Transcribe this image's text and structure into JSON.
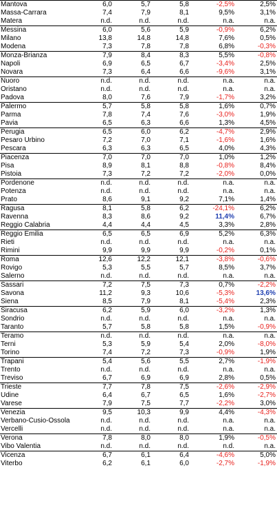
{
  "table": {
    "rows": [
      [
        "Mantova",
        "6,0",
        "5,7",
        "5,8",
        "-2,5%",
        "2,5%"
      ],
      [
        "Massa-Carrara",
        "7,4",
        "7,9",
        "8,1",
        "9,5%",
        "3,1%"
      ],
      [
        "Matera",
        "n.d.",
        "n.d.",
        "n.d.",
        "n.a.",
        "n.a."
      ],
      [
        "Messina",
        "6,0",
        "5,6",
        "5,9",
        "-0,9%",
        "6,2%"
      ],
      [
        "Milano",
        "13,8",
        "14,8",
        "14,8",
        "7,6%",
        "0,5%"
      ],
      [
        "Modena",
        "7,3",
        "7,8",
        "7,8",
        "6,8%",
        "-0,3%"
      ],
      [
        "Monza-Brianza",
        "7,9",
        "8,4",
        "8,3",
        "5,5%",
        "-0,8%"
      ],
      [
        "Napoli",
        "6,9",
        "6,5",
        "6,7",
        "-3,4%",
        "2,5%"
      ],
      [
        "Novara",
        "7,3",
        "6,4",
        "6,6",
        "-9,6%",
        "3,1%"
      ],
      [
        "Nuoro",
        "n.d.",
        "n.d.",
        "n.d.",
        "n.a.",
        "n.a."
      ],
      [
        "Oristano",
        "n.d.",
        "n.d.",
        "n.d.",
        "n.a.",
        "n.a."
      ],
      [
        "Padova",
        "8,0",
        "7,6",
        "7,9",
        "-1,7%",
        "3,2%"
      ],
      [
        "Palermo",
        "5,7",
        "5,8",
        "5,8",
        "1,6%",
        "0,7%"
      ],
      [
        "Parma",
        "7,8",
        "7,4",
        "7,6",
        "-3,0%",
        "1,9%"
      ],
      [
        "Pavia",
        "6,5",
        "6,3",
        "6,6",
        "1,3%",
        "4,5%"
      ],
      [
        "Perugia",
        "6,5",
        "6,0",
        "6,2",
        "-4,7%",
        "2,9%"
      ],
      [
        "Pesaro Urbino",
        "7,2",
        "7,0",
        "7,1",
        "-1,6%",
        "1,6%"
      ],
      [
        "Pescara",
        "6,3",
        "6,3",
        "6,5",
        "4,0%",
        "4,3%"
      ],
      [
        "Piacenza",
        "7,0",
        "7,0",
        "7,0",
        "1,0%",
        "1,2%"
      ],
      [
        "Pisa",
        "8,9",
        "8,1",
        "8,8",
        "-0,8%",
        "8,4%"
      ],
      [
        "Pistoia",
        "7,3",
        "7,2",
        "7,2",
        "-2,0%",
        "0,0%"
      ],
      [
        "Pordenone",
        "n.d.",
        "n.d.",
        "n.d.",
        "n.a.",
        "n.a."
      ],
      [
        "Potenza",
        "n.d.",
        "n.d.",
        "n.d.",
        "n.a.",
        "n.a."
      ],
      [
        "Prato",
        "8,6",
        "9,1",
        "9,2",
        "7,1%",
        "1,4%"
      ],
      [
        "Ragusa",
        "8,1",
        "5,8",
        "6,2",
        "-24,1%",
        "6,2%"
      ],
      [
        "Ravenna",
        "8,3",
        "8,6",
        "9,2",
        "11,4%",
        "6,7%"
      ],
      [
        "Reggio Calabria",
        "4,4",
        "4,4",
        "4,5",
        "3,3%",
        "2,8%"
      ],
      [
        "Reggio Emilia",
        "6,5",
        "6,5",
        "6,9",
        "5,2%",
        "6,3%"
      ],
      [
        "Rieti",
        "n.d.",
        "n.d.",
        "n.d.",
        "n.a.",
        "n.a."
      ],
      [
        "Rimini",
        "9,9",
        "9,9",
        "9,9",
        "-0,2%",
        "0,1%"
      ],
      [
        "Roma",
        "12,6",
        "12,2",
        "12,1",
        "-3,8%",
        "-0,6%"
      ],
      [
        "Rovigo",
        "5,3",
        "5,5",
        "5,7",
        "8,5%",
        "3,7%"
      ],
      [
        "Salerno",
        "n.d.",
        "n.d.",
        "n.d.",
        "n.a.",
        "n.a."
      ],
      [
        "Sassari",
        "7,2",
        "7,5",
        "7,3",
        "0,7%",
        "-2,2%"
      ],
      [
        "Savona",
        "11,2",
        "9,3",
        "10,6",
        "-5,3%",
        "13,6%"
      ],
      [
        "Siena",
        "8,5",
        "7,9",
        "8,1",
        "-5,4%",
        "2,3%"
      ],
      [
        "Siracusa",
        "6,2",
        "5,9",
        "6,0",
        "-3,2%",
        "1,3%"
      ],
      [
        "Sondrio",
        "n.d.",
        "n.d.",
        "n.d.",
        "n.a.",
        "n.a."
      ],
      [
        "Taranto",
        "5,7",
        "5,8",
        "5,8",
        "1,5%",
        "-0,9%"
      ],
      [
        "Teramo",
        "n.d.",
        "n.d.",
        "n.d.",
        "n.a.",
        "n.a."
      ],
      [
        "Terni",
        "5,3",
        "5,9",
        "5,4",
        "2,0%",
        "-8,0%"
      ],
      [
        "Torino",
        "7,4",
        "7,2",
        "7,3",
        "-0,9%",
        "1,9%"
      ],
      [
        "Trapani",
        "5,4",
        "5,6",
        "5,5",
        "2,7%",
        "-1,9%"
      ],
      [
        "Trento",
        "n.d.",
        "n.d.",
        "n.d.",
        "n.a.",
        "n.a."
      ],
      [
        "Treviso",
        "6,7",
        "6,9",
        "6,9",
        "2,8%",
        "0,5%"
      ],
      [
        "Trieste",
        "7,7",
        "7,8",
        "7,5",
        "-2,6%",
        "-2,9%"
      ],
      [
        "Udine",
        "6,4",
        "6,7",
        "6,5",
        "1,6%",
        "-2,7%"
      ],
      [
        "Varese",
        "7,9",
        "7,5",
        "7,7",
        "-2,2%",
        "3,0%"
      ],
      [
        "Venezia",
        "9,5",
        "10,3",
        "9,9",
        "4,4%",
        "-4,3%"
      ],
      [
        "Verbano-Cusio-Ossola",
        "n.d.",
        "n.d.",
        "n.d.",
        "n.a.",
        "n.a."
      ],
      [
        "Vercelli",
        "n.d.",
        "n.d.",
        "n.d.",
        "n.a.",
        "n.a."
      ],
      [
        "Verona",
        "7,8",
        "8,0",
        "8,0",
        "1,9%",
        "-0,5%"
      ],
      [
        "Vibo Valentia",
        "n.d.",
        "n.d.",
        "n.d.",
        "n.d.",
        "n.a."
      ],
      [
        "Vicenza",
        "6,7",
        "6,1",
        "6,4",
        "-4,6%",
        "5,0%"
      ],
      [
        "Viterbo",
        "6,2",
        "6,1",
        "6,0",
        "-2,7%",
        "-1,9%"
      ]
    ],
    "group_starts": [
      0,
      3,
      6,
      9,
      12,
      15,
      18,
      21,
      24,
      27,
      30,
      33,
      36,
      39,
      42,
      45,
      48,
      51,
      53
    ],
    "highlighted_cells": [
      [
        25,
        4
      ],
      [
        34,
        5
      ]
    ],
    "colors": {
      "negative": "#e8201c",
      "highlight": "#1f3fb0",
      "text": "#000000",
      "rule": "#000000"
    }
  }
}
